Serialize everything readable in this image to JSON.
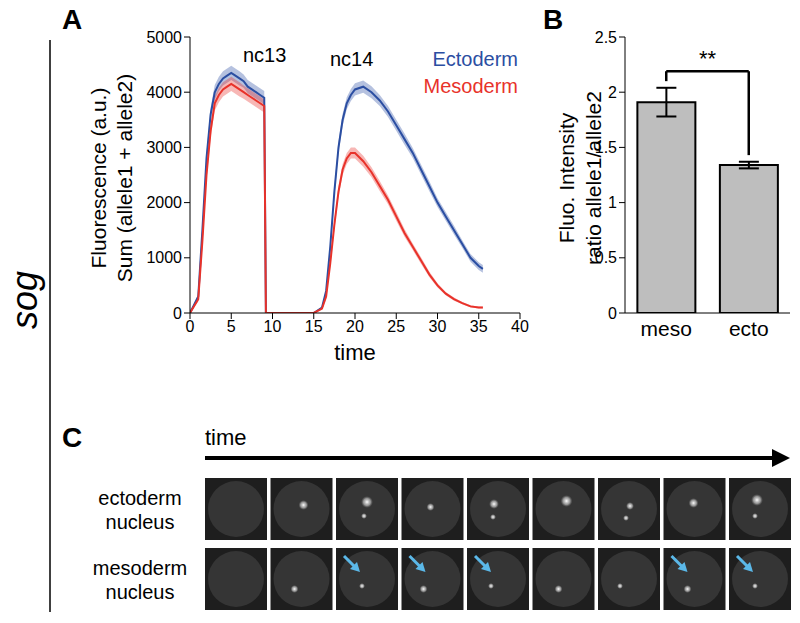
{
  "side_label": "sog",
  "chart_data": [
    {
      "panel": "A",
      "type": "line",
      "xlabel": "time",
      "ylabel": [
        "Fluorescence  (a.u.)",
        "Sum (allele1 + allele2)"
      ],
      "annotations": [
        "nc13",
        "nc14"
      ],
      "x": [
        0,
        1,
        1.5,
        2,
        2.5,
        3,
        3.5,
        4,
        4.5,
        5,
        5.5,
        6,
        6.5,
        7,
        7.5,
        8,
        8.5,
        9,
        9.2,
        10,
        12,
        14,
        15,
        16,
        16.5,
        17,
        17.5,
        18,
        18.5,
        19,
        19.5,
        20,
        21,
        22,
        23,
        24,
        25,
        26,
        27,
        28,
        29,
        30,
        31,
        32,
        33,
        34,
        35,
        35.5
      ],
      "xlim": [
        0,
        40
      ],
      "xticks": [
        0,
        5,
        10,
        15,
        20,
        25,
        30,
        35,
        40
      ],
      "ylim": [
        0,
        5000
      ],
      "yticks": [
        0,
        1000,
        2000,
        3000,
        4000,
        5000
      ],
      "series": [
        {
          "name": "Ectoderm",
          "color": "#2b4ea2",
          "values": [
            0,
            300,
            1500,
            2800,
            3600,
            4000,
            4150,
            4250,
            4300,
            4350,
            4300,
            4250,
            4200,
            4100,
            4050,
            4000,
            3950,
            3900,
            0,
            0,
            0,
            0,
            0,
            100,
            400,
            1200,
            2200,
            3000,
            3500,
            3800,
            3950,
            4050,
            4100,
            4000,
            3850,
            3650,
            3400,
            3150,
            2900,
            2600,
            2300,
            2000,
            1750,
            1500,
            1250,
            1000,
            850,
            800
          ],
          "error": [
            0,
            40,
            80,
            100,
            120,
            130,
            130,
            130,
            130,
            130,
            130,
            130,
            120,
            120,
            120,
            120,
            120,
            120,
            0,
            0,
            0,
            0,
            0,
            20,
            40,
            80,
            100,
            110,
            110,
            110,
            110,
            110,
            110,
            110,
            100,
            100,
            100,
            100,
            90,
            90,
            90,
            80,
            80,
            80,
            70,
            70,
            70,
            70
          ]
        },
        {
          "name": "Mesoderm",
          "color": "#e8322a",
          "values": [
            0,
            250,
            1300,
            2500,
            3300,
            3800,
            3950,
            4050,
            4100,
            4150,
            4100,
            4050,
            4000,
            3950,
            3900,
            3850,
            3800,
            3750,
            0,
            0,
            0,
            0,
            0,
            80,
            300,
            900,
            1600,
            2200,
            2600,
            2800,
            2900,
            2900,
            2750,
            2550,
            2300,
            2050,
            1750,
            1450,
            1200,
            950,
            700,
            500,
            350,
            250,
            180,
            120,
            100,
            100
          ],
          "error": [
            0,
            40,
            80,
            100,
            120,
            130,
            130,
            130,
            130,
            130,
            130,
            130,
            120,
            120,
            120,
            120,
            120,
            120,
            0,
            0,
            0,
            0,
            0,
            20,
            40,
            70,
            90,
            100,
            100,
            100,
            100,
            100,
            100,
            90,
            90,
            80,
            80,
            70,
            60,
            60,
            50,
            40,
            30,
            30,
            20,
            20,
            20,
            20
          ]
        }
      ]
    },
    {
      "panel": "B",
      "type": "bar",
      "ylabel": [
        "Fluo. Intensity",
        "ratio allele1/allele2"
      ],
      "categories": [
        "meso",
        "ecto"
      ],
      "values": [
        1.91,
        1.34
      ],
      "error": [
        0.13,
        0.03
      ],
      "color": "#bebebe",
      "ylim": [
        0,
        2.5
      ],
      "yticks": [
        0,
        0.5,
        1,
        1.5,
        2,
        2.5
      ],
      "annotations": [
        "**"
      ]
    }
  ],
  "panel_c": {
    "panel": "C",
    "time_label": "time",
    "rows": [
      {
        "label": [
          "ectoderm",
          "nucleus"
        ],
        "arrows": [
          false,
          false,
          false,
          false,
          false,
          false,
          false,
          false,
          false
        ]
      },
      {
        "label": [
          "mesoderm",
          "nucleus"
        ],
        "arrows": [
          false,
          false,
          true,
          true,
          true,
          false,
          false,
          true,
          true
        ]
      }
    ]
  }
}
